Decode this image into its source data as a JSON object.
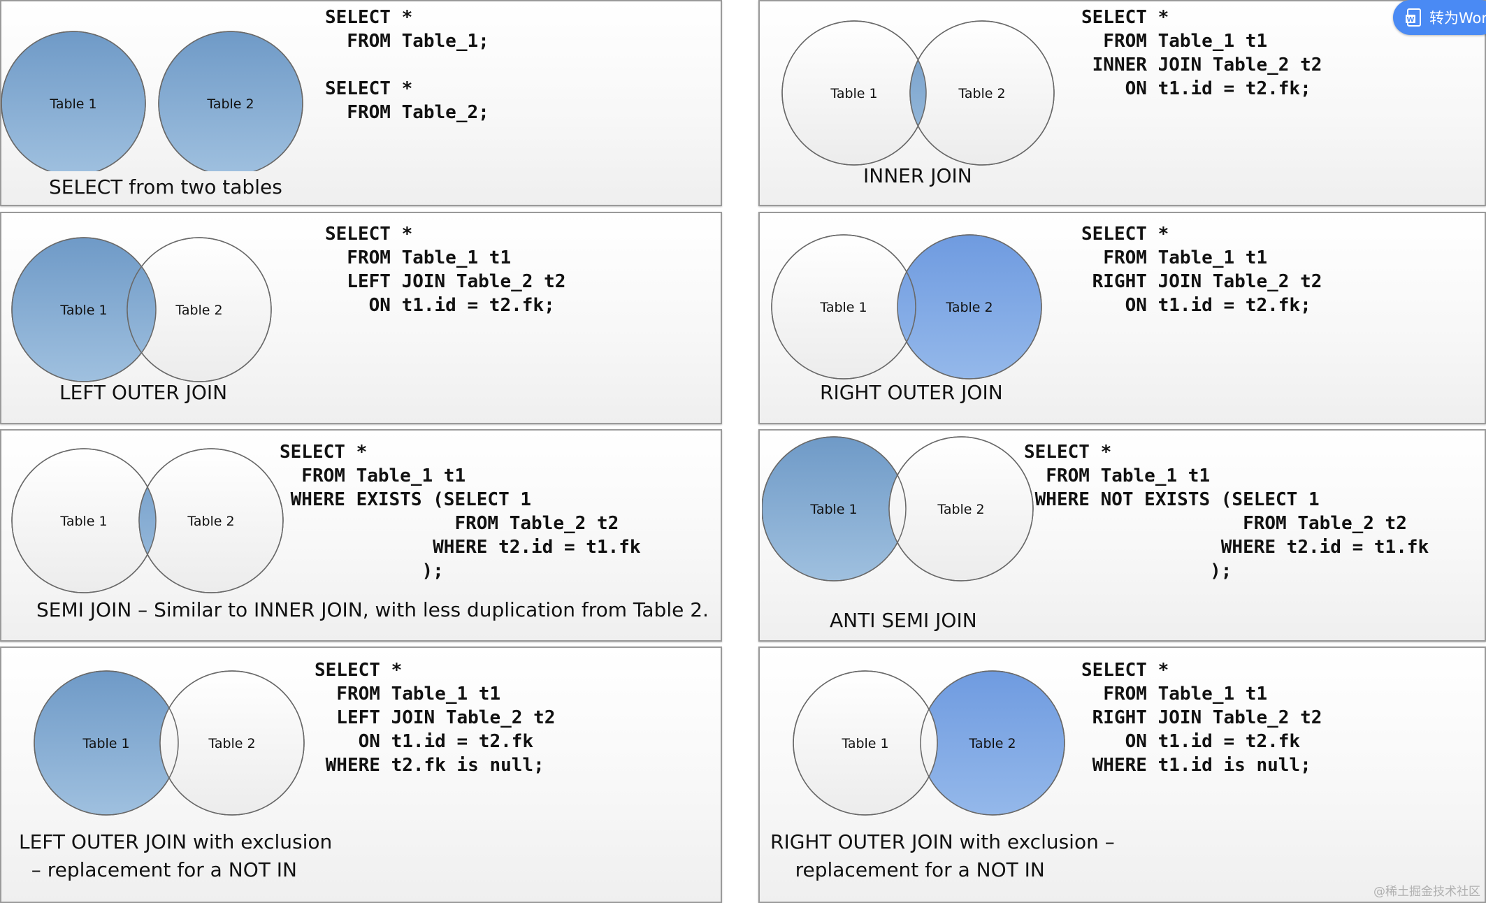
{
  "panels": [
    {
      "id": "select-two",
      "code": "SELECT *\n  FROM Table_1;\n\nSELECT *\n  FROM Table_2;",
      "caption": "SELECT from two tables",
      "labels": [
        "Table 1",
        "Table 2"
      ],
      "fill": "both-separate"
    },
    {
      "id": "inner-join",
      "code": "SELECT *\n  FROM Table_1 t1\n INNER JOIN Table_2 t2\n    ON t1.id = t2.fk;",
      "caption": "INNER JOIN",
      "labels": [
        "Table 1",
        "Table 2"
      ],
      "fill": "intersection"
    },
    {
      "id": "left-outer-join",
      "code": "SELECT *\n  FROM Table_1 t1\n  LEFT JOIN Table_2 t2\n    ON t1.id = t2.fk;",
      "caption": "LEFT OUTER JOIN",
      "labels": [
        "Table 1",
        "Table 2"
      ],
      "fill": "left"
    },
    {
      "id": "right-outer-join",
      "code": "SELECT *\n  FROM Table_1 t1\n RIGHT JOIN Table_2 t2\n    ON t1.id = t2.fk;",
      "caption": "RIGHT OUTER JOIN",
      "labels": [
        "Table 1",
        "Table 2"
      ],
      "fill": "right"
    },
    {
      "id": "semi-join",
      "code": "SELECT *\n  FROM Table_1 t1\n WHERE EXISTS (SELECT 1\n                FROM Table_2 t2\n              WHERE t2.id = t1.fk\n             );",
      "caption": "SEMI JOIN – Similar to INNER JOIN, with less duplication from Table 2.",
      "labels": [
        "Table 1",
        "Table 2"
      ],
      "fill": "intersection"
    },
    {
      "id": "anti-semi-join",
      "code": "SELECT *\n  FROM Table_1 t1\n WHERE NOT EXISTS (SELECT 1\n                    FROM Table_2 t2\n                  WHERE t2.id = t1.fk\n                 );",
      "caption": "ANTI SEMI JOIN",
      "labels": [
        "Table 1",
        "Table 2"
      ],
      "fill": "left-only"
    },
    {
      "id": "left-outer-exclusion",
      "code": "SELECT *\n  FROM Table_1 t1\n  LEFT JOIN Table_2 t2\n    ON t1.id = t2.fk\n WHERE t2.fk is null;",
      "caption": "LEFT OUTER JOIN with exclusion\n  – replacement for a NOT IN",
      "labels": [
        "Table 1",
        "Table 2"
      ],
      "fill": "left-only"
    },
    {
      "id": "right-outer-exclusion",
      "code": "SELECT *\n  FROM Table_1 t1\n RIGHT JOIN Table_2 t2\n    ON t1.id = t2.fk\n WHERE t1.id is null;",
      "caption": "RIGHT OUTER JOIN with exclusion –\n    replacement for a NOT IN",
      "labels": [
        "Table 1",
        "Table 2"
      ],
      "fill": "right-only"
    }
  ],
  "colors": {
    "steel_top": "#6f9ac7",
    "steel_bottom": "#9fc0df",
    "bright_top": "#6f9be0",
    "bright_bottom": "#94b8ea",
    "circle_stroke": "#6a6a6a",
    "empty_top": "#ffffff",
    "empty_bottom": "#ececec"
  },
  "toolbar": {
    "convert_label": "转为Wor"
  },
  "watermark": "@稀土掘金技术社区"
}
